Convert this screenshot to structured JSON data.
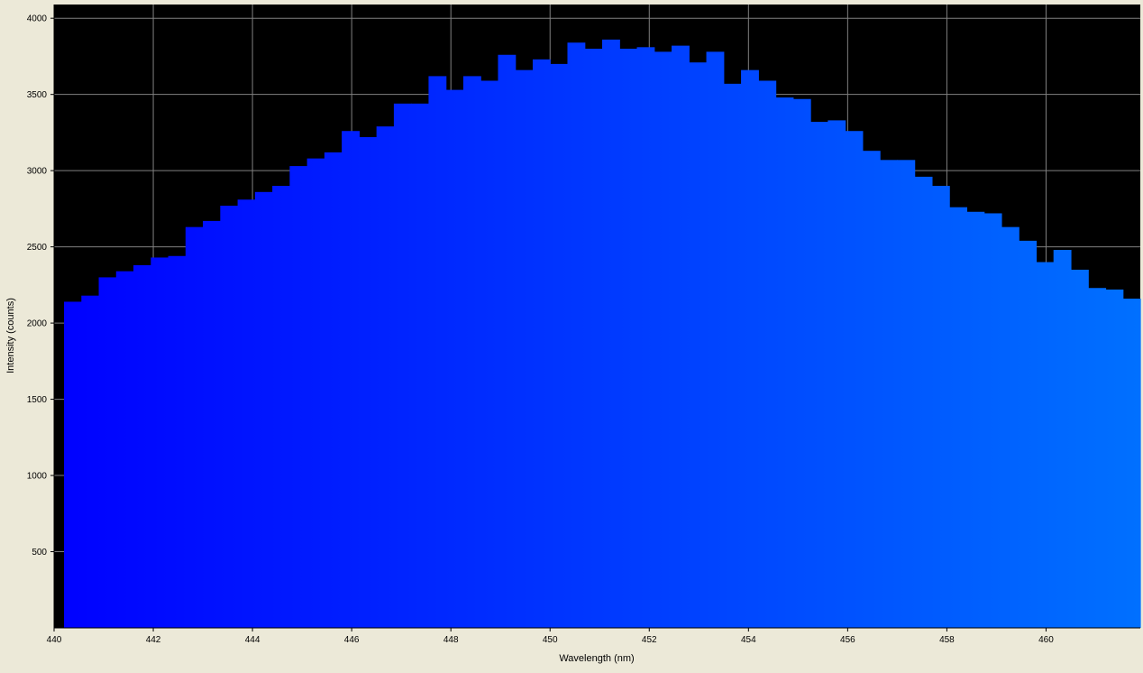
{
  "chart_data": {
    "type": "bar",
    "xlabel": "Wavelength (nm)",
    "ylabel": "Intensity (counts)",
    "xlim": [
      440,
      461.9
    ],
    "ylim": [
      0,
      4090
    ],
    "x_ticks": [
      440,
      442,
      444,
      446,
      448,
      450,
      452,
      454,
      456,
      458,
      460
    ],
    "y_ticks": [
      500,
      1000,
      1500,
      2000,
      2500,
      3000,
      3500,
      4000
    ],
    "grid": true,
    "bin_start": 440.2,
    "bin_width": 0.35,
    "values": [
      2140,
      2180,
      2300,
      2340,
      2380,
      2430,
      2440,
      2630,
      2670,
      2770,
      2810,
      2860,
      2900,
      3030,
      3080,
      3120,
      3260,
      3220,
      3290,
      3440,
      3440,
      3620,
      3530,
      3620,
      3590,
      3760,
      3660,
      3730,
      3700,
      3840,
      3800,
      3860,
      3800,
      3810,
      3780,
      3820,
      3710,
      3780,
      3570,
      3660,
      3590,
      3480,
      3470,
      3320,
      3330,
      3260,
      3130,
      3070,
      3070,
      2960,
      2900,
      2760,
      2730,
      2720,
      2630,
      2540,
      2400,
      2480,
      2350,
      2230,
      2220,
      2160
    ],
    "colors": {
      "plot_background": "#000000",
      "figure_background": "#ece9d8",
      "grid": "#808080",
      "gradient_start": "#0000ff",
      "gradient_end": "#0070ff"
    }
  }
}
